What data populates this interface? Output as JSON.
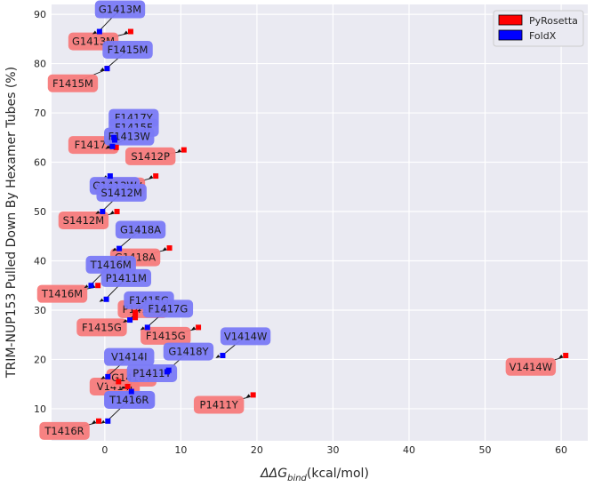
{
  "chart_data": {
    "type": "scatter",
    "xlabel": "ΔΔG",
    "xlabel_sub": "bind",
    "xlabel_unit": "(kcal/mol)",
    "ylabel": "TRIM-NUP153 Pulled Down By Hexamer Tubes (%)",
    "xlim": [
      -7,
      63.5
    ],
    "ylim": [
      3.5,
      92
    ],
    "x_ticks": [
      0,
      10,
      20,
      30,
      40,
      50,
      60
    ],
    "y_ticks": [
      10,
      20,
      30,
      40,
      50,
      60,
      70,
      80,
      90
    ],
    "grid": true,
    "legend_position": "top-right",
    "series": [
      {
        "name": "PyRosetta",
        "color": "#ff0000",
        "label_color": "#f77b7b",
        "points": [
          {
            "label": "G1413M",
            "x": 3.4,
            "y": 86.5,
            "lx": -1.5,
            "ly": 84.5
          },
          {
            "label": "F1415M",
            "x": 0.3,
            "y": 79,
            "lx": -4.2,
            "ly": 76
          },
          {
            "label": "F1417Y",
            "x": 1.5,
            "y": 63,
            "lx": -1.5,
            "ly": 63.5
          },
          {
            "label": "S1412P",
            "x": 10.4,
            "y": 62.5,
            "lx": 6.0,
            "ly": 61.2
          },
          {
            "label": "G1413W",
            "x": 6.7,
            "y": 57.2,
            "lx": 2.0,
            "ly": 55.1
          },
          {
            "label": "S1412M",
            "x": 1.6,
            "y": 50,
            "lx": -2.8,
            "ly": 48.2
          },
          {
            "label": "G1418A",
            "x": 8.5,
            "y": 42.6,
            "lx": 4.0,
            "ly": 40.7
          },
          {
            "label": "T1416M",
            "x": -0.9,
            "y": 35,
            "lx": -5.6,
            "ly": 33.3
          },
          {
            "label": "F1415G",
            "x": 12.3,
            "y": 26.5,
            "lx": 8.0,
            "ly": 24.8
          },
          {
            "label": "F1415G",
            "x": 4.0,
            "y": 28.5,
            "lx": -0.4,
            "ly": 26.5
          },
          {
            "label": "P1411M",
            "x": 4.0,
            "y": 29.5,
            "lx": 5.0,
            "ly": 30.2
          },
          {
            "label": "V1414W",
            "x": 60.6,
            "y": 20.8,
            "lx": 56.0,
            "ly": 18.5
          },
          {
            "label": "P1411Y",
            "x": 19.5,
            "y": 12.8,
            "lx": 15.0,
            "ly": 10.8
          },
          {
            "label": "V1414I",
            "x": 1.8,
            "y": 15.5,
            "lx": 1.3,
            "ly": 14.5
          },
          {
            "label": "G1418Y",
            "x": 3.0,
            "y": 14.5,
            "lx": 3.5,
            "ly": 16.3
          },
          {
            "label": "T1416R",
            "x": -0.8,
            "y": 7.5,
            "lx": -5.3,
            "ly": 5.5
          }
        ]
      },
      {
        "name": "FoldX",
        "color": "#0000ff",
        "label_color": "#7a7af5",
        "points": [
          {
            "label": "G1413M",
            "x": -0.7,
            "y": 86.5,
            "lx": 2.0,
            "ly": 91
          },
          {
            "label": "F1415M",
            "x": 0.3,
            "y": 79,
            "lx": 3.0,
            "ly": 82.8
          },
          {
            "label": "F1417Y",
            "x": 1.2,
            "y": 65,
            "lx": 3.8,
            "ly": 69
          },
          {
            "label": "F1415F",
            "x": 1.3,
            "y": 64.5,
            "lx": 3.8,
            "ly": 67
          },
          {
            "label": "F1413W",
            "x": 1.0,
            "y": 63.2,
            "lx": 3.2,
            "ly": 65.2
          },
          {
            "label": "G1413W",
            "x": 0.7,
            "y": 57.2,
            "lx": 1.3,
            "ly": 55.2
          },
          {
            "label": "S1412M",
            "x": -0.3,
            "y": 50,
            "lx": 2.2,
            "ly": 53.8
          },
          {
            "label": "G1418A",
            "x": 1.9,
            "y": 42.5,
            "lx": 4.7,
            "ly": 46.3
          },
          {
            "label": "T1416M",
            "x": -1.8,
            "y": 35,
            "lx": 0.8,
            "ly": 39.2
          },
          {
            "label": "P1411M",
            "x": 0.2,
            "y": 32.2,
            "lx": 2.8,
            "ly": 36.5
          },
          {
            "label": "F1415G",
            "x": 3.3,
            "y": 28,
            "lx": 5.8,
            "ly": 32
          },
          {
            "label": "F1417G",
            "x": 5.6,
            "y": 26.5,
            "lx": 8.3,
            "ly": 30.3
          },
          {
            "label": "V1414W",
            "x": 15.5,
            "y": 20.8,
            "lx": 18.5,
            "ly": 24.7
          },
          {
            "label": "G1418Y",
            "x": 8.4,
            "y": 17.8,
            "lx": 11.0,
            "ly": 21.6
          },
          {
            "label": "V1414I",
            "x": 0.4,
            "y": 16.5,
            "lx": 3.2,
            "ly": 20.5
          },
          {
            "label": "P1411Y",
            "x": 8.2,
            "y": 17.5,
            "lx": 6.2,
            "ly": 17.2
          },
          {
            "label": "T1416R",
            "x": 3.5,
            "y": 13.5,
            "lx": 3.3,
            "ly": 11.8
          },
          {
            "label": "T1416R",
            "x": 0.4,
            "y": 7.5,
            "lx": 3.2,
            "ly": 11.8
          }
        ]
      }
    ]
  }
}
